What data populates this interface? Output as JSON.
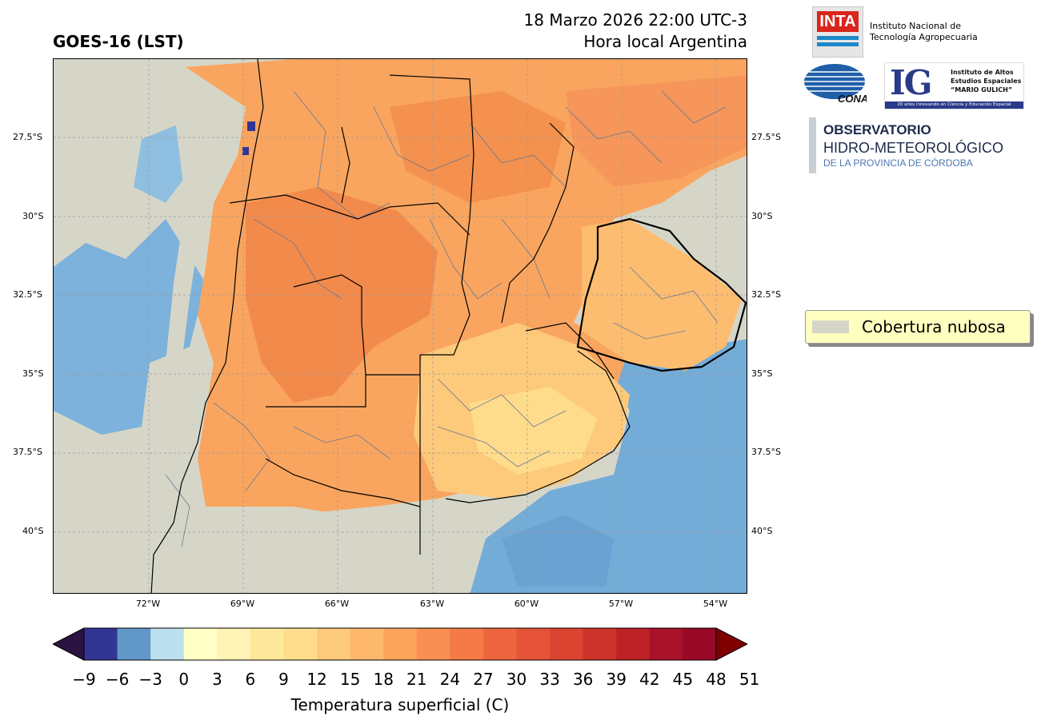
{
  "header": {
    "title_left": "GOES-16 (LST)",
    "datetime": "18 Marzo 2026 22:00 UTC-3",
    "local_time_label": "Hora local Argentina"
  },
  "map": {
    "lat_labels": [
      "27.5°S",
      "30°S",
      "32.5°S",
      "35°S",
      "37.5°S",
      "40°S"
    ],
    "lon_labels": [
      "72°W",
      "69°W",
      "66°W",
      "63°W",
      "60°W",
      "57°W",
      "54°W"
    ],
    "colors": {
      "cloud": "#d6d6c8",
      "ocean_cold": "#6fa8d6",
      "land_warm": "#f7a35c",
      "land_hot": "#f08045",
      "land_mild": "#fdcf80",
      "border": "#000000",
      "dept_lines": "#6a7890",
      "grid": "#999999"
    }
  },
  "colorbar": {
    "ticks": [
      "−9",
      "−6",
      "−3",
      "0",
      "3",
      "6",
      "9",
      "12",
      "15",
      "18",
      "21",
      "24",
      "27",
      "30",
      "33",
      "36",
      "39",
      "42",
      "45",
      "48",
      "51"
    ],
    "colors": [
      "#313695",
      "#6299c8",
      "#bde0ef",
      "#ffffc6",
      "#fff3b5",
      "#fee89c",
      "#fedc8c",
      "#fdc97b",
      "#fdb86c",
      "#fca35c",
      "#f98f52",
      "#f57a48",
      "#ee6640",
      "#e55438",
      "#da4430",
      "#cc332a",
      "#bc2226",
      "#a91228",
      "#990826"
    ],
    "under_color": "#2b1341",
    "over_color": "#7f0000",
    "label": "Temperatura superficial (C)"
  },
  "logos": {
    "inta_mark": "INTA",
    "inta_line1": "Instituto Nacional de",
    "inta_line2": "Tecnología Agropecuaria",
    "conae": "CONAE",
    "ig_mark": "IG",
    "ig_line1": "Instituto de Altos",
    "ig_line2": "Estudios Espaciales",
    "ig_line3": "“MARIO GULICH”",
    "ig_band": "20 años innovando en Ciencia y Educación Espacial",
    "obs_line1": "OBSERVATORIO",
    "obs_line2": "HIDRO-METEOROLÓGICO",
    "obs_line3": "DE LA PROVINCIA DE CÓRDOBA"
  },
  "legend": {
    "label": "Cobertura nubosa"
  }
}
